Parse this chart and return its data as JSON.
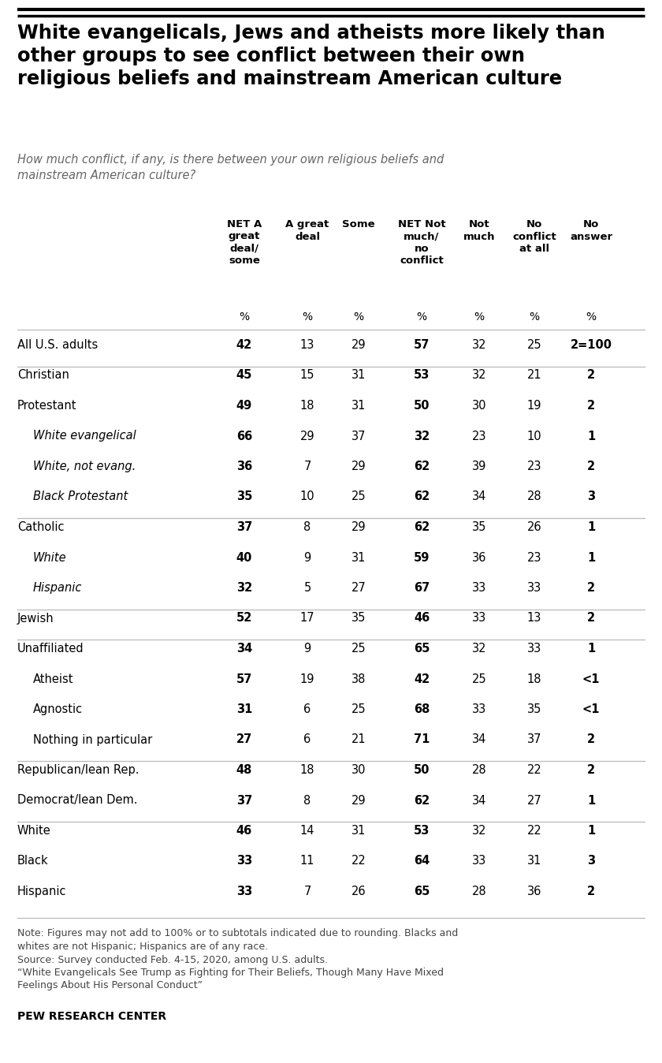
{
  "title": "White evangelicals, Jews and atheists more likely than\nother groups to see conflict between their own\nreligious beliefs and mainstream American culture",
  "subtitle": "How much conflict, if any, is there between your own religious beliefs and\nmainstream American culture?",
  "col_headers": [
    "NET A\ngreat\ndeal/\nsome",
    "A great\ndeal",
    "Some",
    "NET Not\nmuch/\nno\nconflict",
    "Not\nmuch",
    "No\nconflict\nat all",
    "No\nanswer"
  ],
  "rows": [
    {
      "label": "All U.S. adults",
      "indent": 0,
      "values": [
        "42",
        "13",
        "29",
        "57",
        "32",
        "25",
        "2=100"
      ],
      "bold_cols": [
        0,
        3,
        6
      ],
      "sep_above": true,
      "italic": false
    },
    {
      "label": "Christian",
      "indent": 0,
      "values": [
        "45",
        "15",
        "31",
        "53",
        "32",
        "21",
        "2"
      ],
      "bold_cols": [
        0,
        3,
        6
      ],
      "sep_above": true,
      "italic": false
    },
    {
      "label": "Protestant",
      "indent": 0,
      "values": [
        "49",
        "18",
        "31",
        "50",
        "30",
        "19",
        "2"
      ],
      "bold_cols": [
        0,
        3,
        6
      ],
      "sep_above": false,
      "italic": false
    },
    {
      "label": "White evangelical",
      "indent": 1,
      "values": [
        "66",
        "29",
        "37",
        "32",
        "23",
        "10",
        "1"
      ],
      "bold_cols": [
        0,
        3,
        6
      ],
      "sep_above": false,
      "italic": true
    },
    {
      "label": "White, not evang.",
      "indent": 1,
      "values": [
        "36",
        "7",
        "29",
        "62",
        "39",
        "23",
        "2"
      ],
      "bold_cols": [
        0,
        3,
        6
      ],
      "sep_above": false,
      "italic": true
    },
    {
      "label": "Black Protestant",
      "indent": 1,
      "values": [
        "35",
        "10",
        "25",
        "62",
        "34",
        "28",
        "3"
      ],
      "bold_cols": [
        0,
        3,
        6
      ],
      "sep_above": false,
      "italic": true
    },
    {
      "label": "Catholic",
      "indent": 0,
      "values": [
        "37",
        "8",
        "29",
        "62",
        "35",
        "26",
        "1"
      ],
      "bold_cols": [
        0,
        3,
        6
      ],
      "sep_above": true,
      "italic": false
    },
    {
      "label": "White",
      "indent": 1,
      "values": [
        "40",
        "9",
        "31",
        "59",
        "36",
        "23",
        "1"
      ],
      "bold_cols": [
        0,
        3,
        6
      ],
      "sep_above": false,
      "italic": true
    },
    {
      "label": "Hispanic",
      "indent": 1,
      "values": [
        "32",
        "5",
        "27",
        "67",
        "33",
        "33",
        "2"
      ],
      "bold_cols": [
        0,
        3,
        6
      ],
      "sep_above": false,
      "italic": true
    },
    {
      "label": "Jewish",
      "indent": 0,
      "values": [
        "52",
        "17",
        "35",
        "46",
        "33",
        "13",
        "2"
      ],
      "bold_cols": [
        0,
        3,
        6
      ],
      "sep_above": true,
      "italic": false
    },
    {
      "label": "Unaffiliated",
      "indent": 0,
      "values": [
        "34",
        "9",
        "25",
        "65",
        "32",
        "33",
        "1"
      ],
      "bold_cols": [
        0,
        3,
        6
      ],
      "sep_above": true,
      "italic": false
    },
    {
      "label": "Atheist",
      "indent": 1,
      "values": [
        "57",
        "19",
        "38",
        "42",
        "25",
        "18",
        "<1"
      ],
      "bold_cols": [
        0,
        3,
        6
      ],
      "sep_above": false,
      "italic": false
    },
    {
      "label": "Agnostic",
      "indent": 1,
      "values": [
        "31",
        "6",
        "25",
        "68",
        "33",
        "35",
        "<1"
      ],
      "bold_cols": [
        0,
        3,
        6
      ],
      "sep_above": false,
      "italic": false
    },
    {
      "label": "Nothing in particular",
      "indent": 1,
      "values": [
        "27",
        "6",
        "21",
        "71",
        "34",
        "37",
        "2"
      ],
      "bold_cols": [
        0,
        3,
        6
      ],
      "sep_above": false,
      "italic": false
    },
    {
      "label": "Republican/lean Rep.",
      "indent": 0,
      "values": [
        "48",
        "18",
        "30",
        "50",
        "28",
        "22",
        "2"
      ],
      "bold_cols": [
        0,
        3,
        6
      ],
      "sep_above": true,
      "italic": false
    },
    {
      "label": "Democrat/lean Dem.",
      "indent": 0,
      "values": [
        "37",
        "8",
        "29",
        "62",
        "34",
        "27",
        "1"
      ],
      "bold_cols": [
        0,
        3,
        6
      ],
      "sep_above": false,
      "italic": false
    },
    {
      "label": "White",
      "indent": 0,
      "values": [
        "46",
        "14",
        "31",
        "53",
        "32",
        "22",
        "1"
      ],
      "bold_cols": [
        0,
        3,
        6
      ],
      "sep_above": true,
      "italic": false
    },
    {
      "label": "Black",
      "indent": 0,
      "values": [
        "33",
        "11",
        "22",
        "64",
        "33",
        "31",
        "3"
      ],
      "bold_cols": [
        0,
        3,
        6
      ],
      "sep_above": false,
      "italic": false
    },
    {
      "label": "Hispanic",
      "indent": 0,
      "values": [
        "33",
        "7",
        "26",
        "65",
        "28",
        "36",
        "2"
      ],
      "bold_cols": [
        0,
        3,
        6
      ],
      "sep_above": false,
      "italic": false
    }
  ],
  "note_lines": [
    "Note: Figures may not add to 100% or to subtotals indicated due to rounding. Blacks and",
    "whites are not Hispanic; Hispanics are of any race.",
    "Source: Survey conducted Feb. 4-15, 2020, among U.S. adults.",
    "“White Evangelicals See Trump as Fighting for Their Beliefs, Though Many Have Mixed",
    "Feelings About His Personal Conduct”"
  ],
  "source_label": "PEW RESEARCH CENTER",
  "bg_color": "#ffffff",
  "text_color": "#000000",
  "line_color": "#bbbbbb",
  "subtitle_color": "#666666"
}
